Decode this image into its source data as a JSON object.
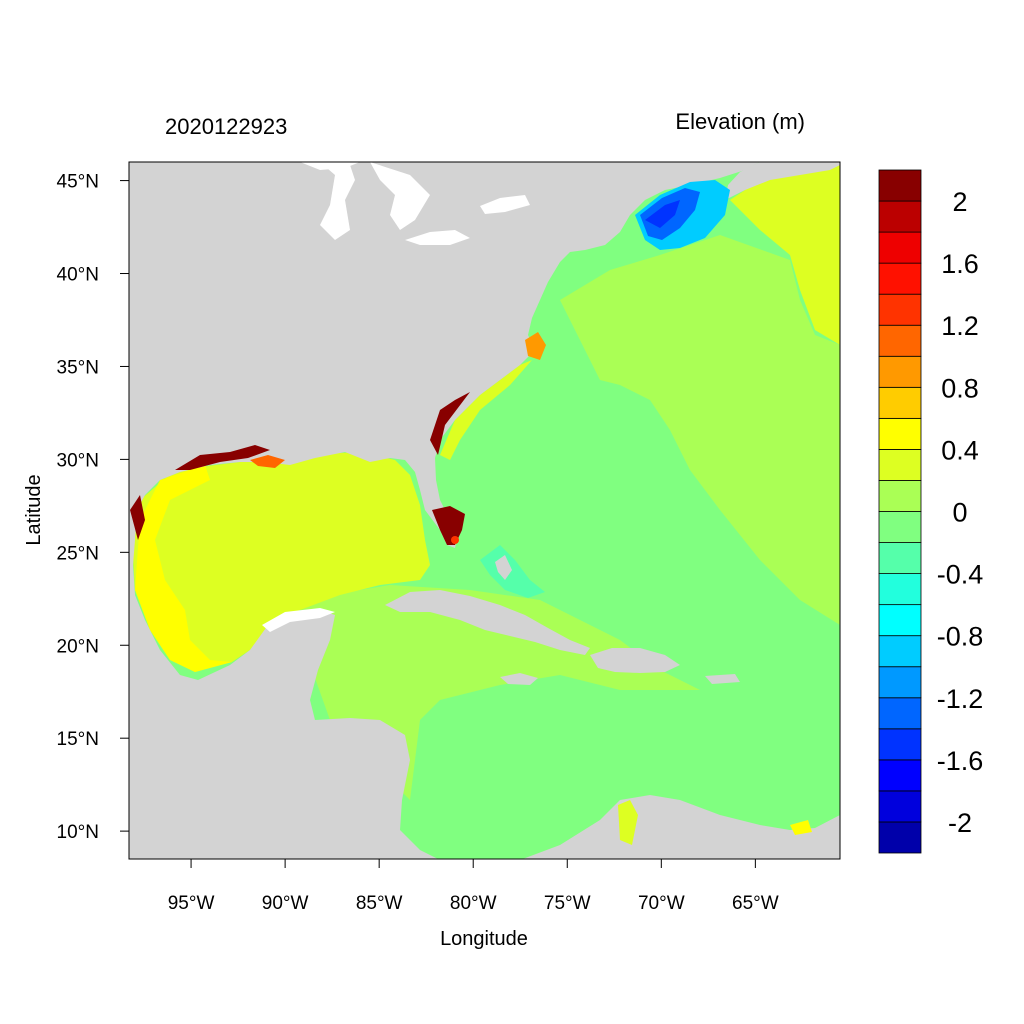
{
  "header": {
    "left_title": "2020122923",
    "right_title": "Elevation (m)"
  },
  "axes": {
    "xlabel": "Longitude",
    "ylabel": "Latitude",
    "lon_range": [
      -98.3,
      -60.5
    ],
    "lat_range": [
      8.5,
      46.0
    ],
    "lon_ticks": [
      {
        "value": -95,
        "label": "95°W"
      },
      {
        "value": -90,
        "label": "90°W"
      },
      {
        "value": -85,
        "label": "85°W"
      },
      {
        "value": -80,
        "label": "80°W"
      },
      {
        "value": -75,
        "label": "75°W"
      },
      {
        "value": -70,
        "label": "70°W"
      },
      {
        "value": -65,
        "label": "65°W"
      }
    ],
    "lat_ticks": [
      {
        "value": 45,
        "label": "45°N"
      },
      {
        "value": 40,
        "label": "40°N"
      },
      {
        "value": 35,
        "label": "35°N"
      },
      {
        "value": 30,
        "label": "30°N"
      },
      {
        "value": 25,
        "label": "25°N"
      },
      {
        "value": 20,
        "label": "20°N"
      },
      {
        "value": 15,
        "label": "15°N"
      },
      {
        "value": 10,
        "label": "10°N"
      }
    ]
  },
  "colorbar": {
    "colors": [
      "#0000aa",
      "#0000dd",
      "#0000ff",
      "#0033ff",
      "#0066ff",
      "#0099ff",
      "#00ccff",
      "#00ffff",
      "#22ffdd",
      "#55ffaa",
      "#80ff80",
      "#aaff55",
      "#ddff22",
      "#ffff00",
      "#ffcc00",
      "#ff9900",
      "#ff6600",
      "#ff3300",
      "#ff1100",
      "#ee0000",
      "#bb0000",
      "#880000"
    ],
    "labels": [
      {
        "value": 2,
        "label": "2"
      },
      {
        "value": 1.6,
        "label": "1.6"
      },
      {
        "value": 1.2,
        "label": "1.2"
      },
      {
        "value": 0.8,
        "label": "0.8"
      },
      {
        "value": 0.4,
        "label": "0.4"
      },
      {
        "value": 0,
        "label": "0"
      },
      {
        "value": -0.4,
        "label": "-0.4"
      },
      {
        "value": -0.8,
        "label": "-0.8"
      },
      {
        "value": -1.2,
        "label": "-1.2"
      },
      {
        "value": -1.6,
        "label": "-1.6"
      },
      {
        "value": -2,
        "label": "-2"
      }
    ]
  },
  "colors": {
    "land": "#d3d3d3",
    "lake": "#ffffff",
    "deep_ocean": "#80ff80",
    "shelf_ocean": "#aaff55",
    "gulf": "#ddff22",
    "high_surge": "#880000",
    "low_surge": "#0033ff"
  }
}
